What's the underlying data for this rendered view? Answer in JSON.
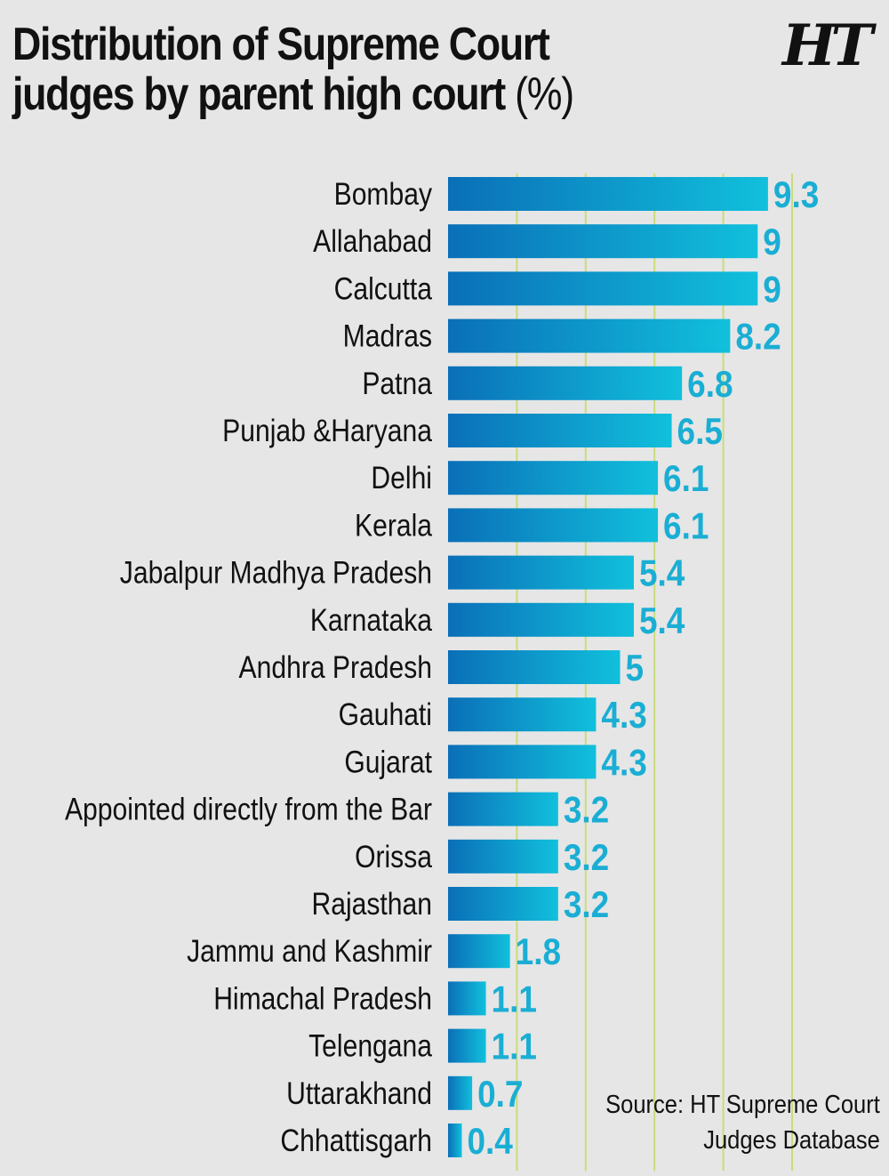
{
  "title": {
    "line1": "Distribution of Supreme Court",
    "line2": "judges by parent high court",
    "unit": "(%)"
  },
  "logo": "HT",
  "source": {
    "line1": "Source: HT Supreme Court",
    "line2": "Judges Database"
  },
  "colors": {
    "background": "#e6e6e6",
    "bar_start": "#0a6fb8",
    "bar_end": "#11c0dc",
    "value_label": "#1aaed4",
    "gridline": "#c9dc7a"
  },
  "chart_data": {
    "type": "bar",
    "orientation": "horizontal",
    "categories": [
      "Bombay",
      "Allahabad",
      "Calcutta",
      "Madras",
      "Patna",
      "Punjab &Haryana",
      "Delhi",
      "Kerala",
      "Jabalpur Madhya Pradesh",
      "Karnataka",
      "Andhra Pradesh",
      "Gauhati",
      "Gujarat",
      "Appointed directly from the Bar",
      "Orissa",
      "Rajasthan",
      "Jammu and Kashmir",
      "Himachal Pradesh",
      "Telengana",
      "Uttarakhand",
      "Chhattisgarh"
    ],
    "values": [
      9.3,
      9,
      9,
      8.2,
      6.8,
      6.5,
      6.1,
      6.1,
      5.4,
      5.4,
      5,
      4.3,
      4.3,
      3.2,
      3.2,
      3.2,
      1.8,
      1.1,
      1.1,
      0.7,
      0.4
    ],
    "value_labels": [
      "9.3",
      "9",
      "9",
      "8.2",
      "6.8",
      "6.5",
      "6.1",
      "6.1",
      "5.4",
      "5.4",
      "5",
      "4.3",
      "4.3",
      "3.2",
      "3.2",
      "3.2",
      "1.8",
      "1.1",
      "1.1",
      "0.7",
      "0.4"
    ],
    "xlim": [
      0,
      10
    ],
    "gridlines_at": [
      2,
      4,
      6,
      8,
      10
    ],
    "grid": true,
    "axis_ticks_shown": false
  }
}
